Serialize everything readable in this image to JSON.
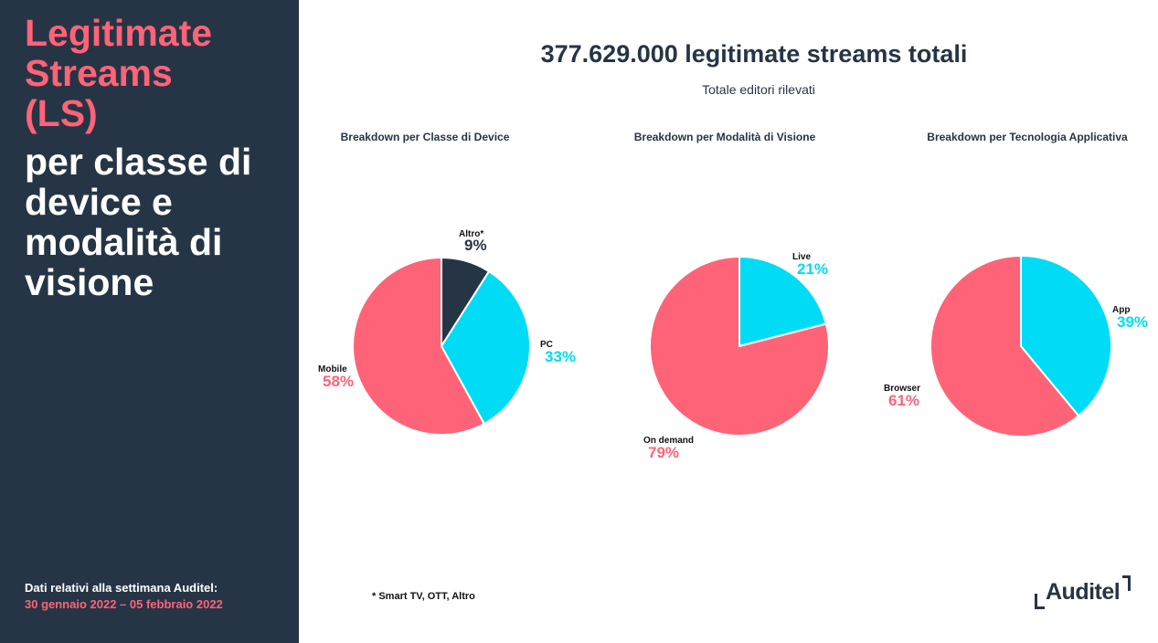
{
  "sidebar": {
    "title_accent": [
      "Legitimate",
      "Streams",
      "(LS)"
    ],
    "title_white": [
      "per classe di",
      "device e",
      "modalità di",
      "visione"
    ],
    "week_label": "Dati relativi alla settimana Auditel:",
    "week_dates": "30 gennaio 2022 – 05 febbraio 2022"
  },
  "header": {
    "title": "377.629.000 legitimate streams totali",
    "subtitle": "Totale editori rilevati"
  },
  "colors": {
    "dark": "#263545",
    "pink": "#ff6378",
    "cyan": "#00dcf5"
  },
  "chart_data": [
    {
      "type": "pie",
      "title": "Breakdown per Classe di Device",
      "labels": [
        "Altro*",
        "PC",
        "Mobile"
      ],
      "values": [
        9,
        33,
        58
      ],
      "value_labels": [
        "9%",
        "33%",
        "58%"
      ],
      "colors": [
        "#263545",
        "#00dcf5",
        "#ff6378"
      ]
    },
    {
      "type": "pie",
      "title": "Breakdown per Modalità di Visione",
      "labels": [
        "Live",
        "On demand"
      ],
      "values": [
        21,
        79
      ],
      "value_labels": [
        "21%",
        "79%"
      ],
      "colors": [
        "#00dcf5",
        "#ff6378"
      ]
    },
    {
      "type": "pie",
      "title": "Breakdown per Tecnologia Applicativa",
      "labels": [
        "App",
        "Browser"
      ],
      "values": [
        39,
        61
      ],
      "value_labels": [
        "39%",
        "61%"
      ],
      "colors": [
        "#00dcf5",
        "#ff6378"
      ]
    }
  ],
  "footnote": "* Smart TV, OTT, Altro",
  "logo": "Auditel"
}
